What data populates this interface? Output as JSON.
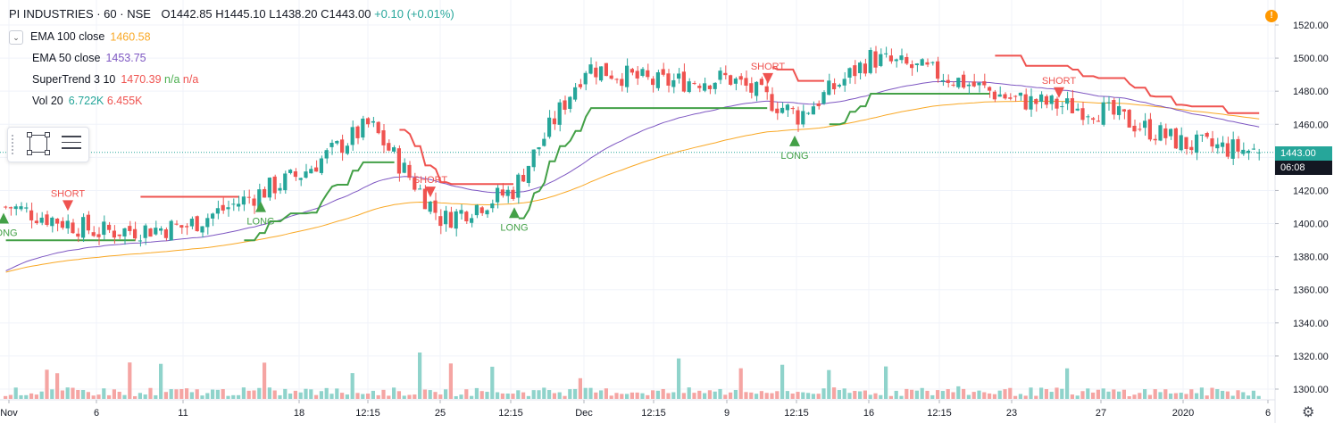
{
  "header": {
    "title": "PI INDUSTRIES · 60 · NSE",
    "ohlc": "O1442.85 H1445.10 L1438.20 C1443.00",
    "change": "+0.10 (+0.01%)"
  },
  "indicators": [
    {
      "name": "EMA 100 close",
      "value": "1460.58",
      "value_color": "#f9a825"
    },
    {
      "name": "EMA 50 close",
      "value": "1453.75",
      "value_color": "#7e57c2"
    },
    {
      "name": "SuperTrend 3 10",
      "value": "1470.39",
      "extra": "n/a",
      "extra2": "n/a",
      "value_color": "#ef5350",
      "extra_color": "#4caf50",
      "extra2_color": "#ef5350"
    },
    {
      "name": "Vol 20",
      "value": "6.722K",
      "extra": "6.455K",
      "value_color": "#26a69a",
      "extra_color": "#ef5350"
    }
  ],
  "price_axis": {
    "ticks": [
      "1520.00",
      "1500.00",
      "1480.00",
      "1460.00",
      "1440.00",
      "1420.00",
      "1400.00",
      "1380.00",
      "1360.00",
      "1340.00",
      "1320.00",
      "1300.00"
    ],
    "current_price": "1443.00",
    "countdown": "06:08"
  },
  "time_axis": {
    "ticks": [
      "Nov",
      "6",
      "11",
      "18",
      "12:15",
      "25",
      "12:15",
      "Dec",
      "12:15",
      "9",
      "12:15",
      "16",
      "12:15",
      "23",
      "27",
      "2020",
      "6"
    ]
  },
  "colors": {
    "up": "#26a69a",
    "down": "#ef5350",
    "ema100": "#f9a825",
    "ema50": "#7e57c2",
    "st_long": "#43a047",
    "st_short": "#ef5350",
    "vol_up": "#8fd3cb",
    "vol_down": "#f5a5a3",
    "price_label": "#26a69a",
    "countdown_bg": "#131722"
  },
  "chart_data": {
    "type": "candlestick",
    "ylim": [
      1290,
      1530
    ],
    "anchors": [
      {
        "x": "Nov",
        "close": 1410
      },
      {
        "x": "6",
        "close": 1395
      },
      {
        "x": "11",
        "close": 1398
      },
      {
        "x": "18",
        "close": 1430
      },
      {
        "x": "12:15",
        "close": 1460
      },
      {
        "x": "25",
        "close": 1402
      },
      {
        "x": "12:15",
        "close": 1420
      },
      {
        "x": "Dec",
        "close": 1495
      },
      {
        "x": "12:15",
        "close": 1485
      },
      {
        "x": "9",
        "close": 1488
      },
      {
        "x": "12:15",
        "close": 1465
      },
      {
        "x": "16",
        "close": 1500
      },
      {
        "x": "12:15",
        "close": 1490
      },
      {
        "x": "23",
        "close": 1475
      },
      {
        "x": "27",
        "close": 1468
      },
      {
        "x": "2020",
        "close": 1448
      },
      {
        "x": "6",
        "close": 1443
      }
    ],
    "ema100_last": 1460.58,
    "ema50_last": 1453.75,
    "supertrend_last": 1470.39,
    "signals": [
      {
        "label": "LONG",
        "type": "long"
      },
      {
        "label": "SHORT",
        "type": "short"
      },
      {
        "label": "LONG",
        "type": "long"
      },
      {
        "label": "SHORT",
        "type": "short"
      },
      {
        "label": "LONG",
        "type": "long"
      },
      {
        "label": "SHORT",
        "type": "short"
      },
      {
        "label": "LONG",
        "type": "long"
      },
      {
        "label": "SHORT",
        "type": "short"
      }
    ],
    "volume_last": "6.722K",
    "volume_ma": "6.455K"
  }
}
